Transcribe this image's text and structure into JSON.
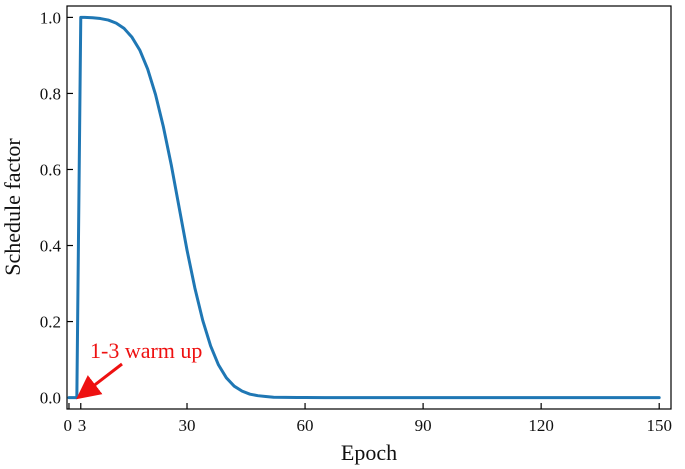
{
  "chart_data": {
    "type": "line",
    "title": "",
    "xlabel": "Epoch",
    "ylabel": "Schedule factor",
    "xlim": [
      -0.5,
      153
    ],
    "ylim": [
      -0.03,
      1.03
    ],
    "grid": false,
    "legend": "none",
    "x_ticks": [
      0,
      3,
      30,
      60,
      90,
      120,
      150
    ],
    "x_tick_labels": [
      "0",
      "3",
      "30",
      "60",
      "90",
      "120",
      "150"
    ],
    "y_ticks": [
      0.0,
      0.2,
      0.4,
      0.6,
      0.8,
      1.0
    ],
    "y_tick_labels": [
      "0.0",
      "0.2",
      "0.4",
      "0.6",
      "0.8",
      "1.0"
    ],
    "series": [
      {
        "color": "#1f77b4",
        "x": [
          0,
          1,
          2,
          3,
          4,
          6,
          8,
          10,
          12,
          14,
          16,
          18,
          20,
          22,
          24,
          26,
          28,
          30,
          32,
          34,
          36,
          38,
          40,
          42,
          44,
          46,
          48,
          50,
          52,
          55,
          58,
          60,
          65,
          70,
          80,
          90,
          100,
          120,
          150
        ],
        "y": [
          0.0,
          0.0,
          0.0,
          1.0,
          1.0,
          0.999,
          0.997,
          0.993,
          0.985,
          0.971,
          0.948,
          0.914,
          0.864,
          0.797,
          0.712,
          0.612,
          0.5,
          0.388,
          0.288,
          0.203,
          0.136,
          0.086,
          0.052,
          0.03,
          0.017,
          0.009,
          0.005,
          0.003,
          0.001,
          0.0005,
          0.0002,
          0.0001,
          0.0,
          0.0,
          0.0,
          0.0,
          0.0,
          0.0,
          0.0
        ]
      }
    ],
    "annotations": [
      {
        "text": "1-3 warm up",
        "color": "#ee1111",
        "arrow_to": [
          1.5,
          0.0
        ]
      }
    ]
  }
}
